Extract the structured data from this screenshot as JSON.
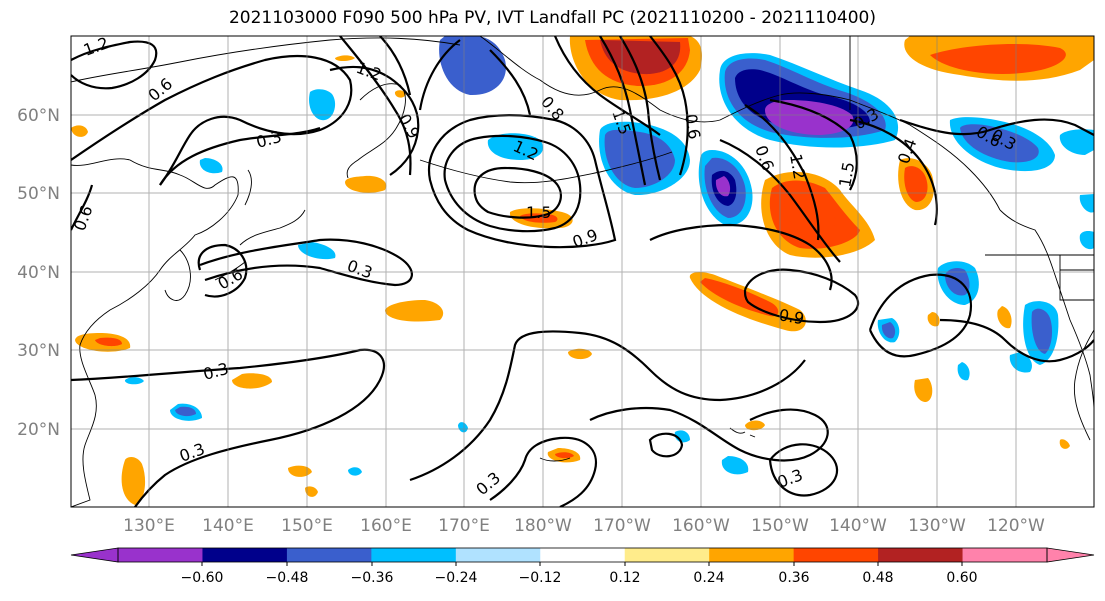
{
  "title": "2021103000 F090 500 hPa PV, IVT Landfall PC (2021110200 - 2021110400)",
  "lat_labels": [
    "60°N",
    "50°N",
    "40°N",
    "30°N",
    "20°N"
  ],
  "lon_labels": [
    "130°E",
    "140°E",
    "150°E",
    "160°E",
    "170°E",
    "180°W",
    "170°W",
    "160°W",
    "150°W",
    "140°W",
    "130°W",
    "120°W"
  ],
  "contour_labels": [
    "1.2",
    "0.6",
    "1.2",
    "0.9",
    "0.3",
    "0.6",
    "1.2",
    "0.8",
    "1.5",
    "0.6",
    "0.6",
    "1.2",
    "1.5",
    "0.9",
    "1.5",
    "0.6",
    "0.3",
    "0.6",
    "0.3",
    "0.9",
    "0.3",
    "0.3",
    "0.3",
    "0.3",
    "0.4",
    "0.3"
  ],
  "colorbar": {
    "tick_labels": [
      "−0.60",
      "−0.48",
      "−0.36",
      "−0.24",
      "−0.12",
      "0.12",
      "0.24",
      "0.36",
      "0.48",
      "0.60"
    ],
    "colors": [
      "#9932cc",
      "#00008b",
      "#3a5fcd",
      "#00bfff",
      "#b0e2ff",
      "#ffffff",
      "#ffec8b",
      "#ffa500",
      "#ff4500",
      "#b22222",
      "#ff82ab"
    ]
  }
}
